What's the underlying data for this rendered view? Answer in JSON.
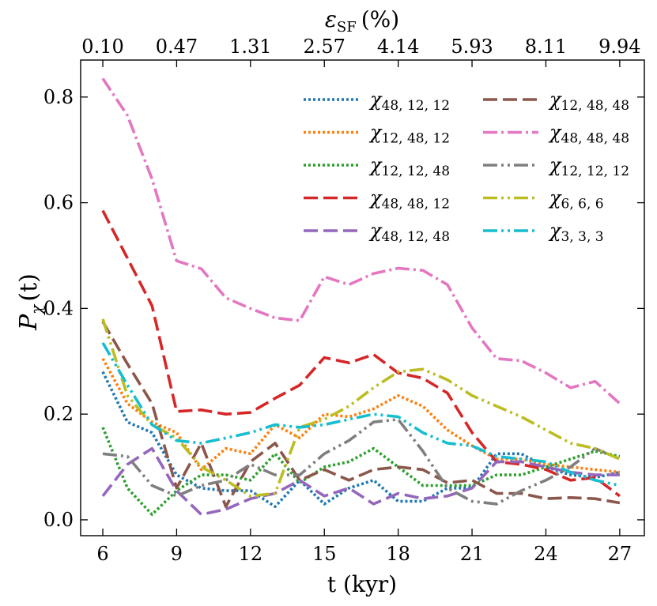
{
  "chart_data": {
    "type": "line",
    "xlabel": "t (kyr)",
    "ylabel_main": "P",
    "ylabel_sub": "χ",
    "ylabel_arg": "(t)",
    "top_axis_label_main": "ε",
    "top_axis_label_sub": "SF",
    "top_axis_label_unit": "(%)",
    "xlim": [
      5.1,
      28.0
    ],
    "ylim": [
      -0.03,
      0.87
    ],
    "x_ticks": [
      6,
      9,
      12,
      15,
      18,
      21,
      24,
      27
    ],
    "x_tick_labels": [
      "6",
      "9",
      "12",
      "15",
      "18",
      "21",
      "24",
      "27"
    ],
    "y_ticks": [
      0.0,
      0.2,
      0.4,
      0.6,
      0.8
    ],
    "y_tick_labels": [
      "0.0",
      "0.2",
      "0.4",
      "0.6",
      "0.8"
    ],
    "top_ticks": [
      6,
      9,
      12,
      15,
      18,
      21,
      24,
      27
    ],
    "top_tick_labels": [
      "0.10",
      "0.47",
      "1.31",
      "2.57",
      "4.14",
      "5.93",
      "8.11",
      "9.94"
    ],
    "x": [
      6,
      7,
      8,
      9,
      10,
      11,
      12,
      13,
      14,
      15,
      16,
      17,
      18,
      19,
      20,
      21,
      22,
      23,
      24,
      25,
      26,
      27
    ],
    "series": [
      {
        "name": "χ48,12,12",
        "sub": "48, 12, 12",
        "color": "#1f77b4",
        "dash": "3,3",
        "values": [
          0.28,
          0.185,
          0.165,
          0.085,
          0.06,
          0.055,
          0.055,
          0.025,
          0.075,
          0.03,
          0.06,
          0.075,
          0.035,
          0.035,
          0.06,
          0.06,
          0.125,
          0.125,
          0.1,
          0.085,
          0.08,
          0.09
        ]
      },
      {
        "name": "χ12,48,12",
        "sub": "12, 48, 12",
        "color": "#ff7f0e",
        "dash": "3,3",
        "values": [
          0.305,
          0.22,
          0.185,
          0.165,
          0.095,
          0.135,
          0.125,
          0.18,
          0.155,
          0.2,
          0.195,
          0.21,
          0.235,
          0.215,
          0.17,
          0.14,
          0.115,
          0.115,
          0.105,
          0.1,
          0.095,
          0.09
        ]
      },
      {
        "name": "χ12,12,48",
        "sub": "12, 12, 48",
        "color": "#2ca02c",
        "dash": "3,3",
        "values": [
          0.175,
          0.06,
          0.01,
          0.055,
          0.085,
          0.085,
          0.075,
          0.125,
          0.07,
          0.1,
          0.11,
          0.135,
          0.1,
          0.065,
          0.065,
          0.065,
          0.085,
          0.085,
          0.1,
          0.115,
          0.13,
          0.12
        ]
      },
      {
        "name": "χ48,48,12",
        "sub": "48, 48, 12",
        "color": "#d62728",
        "dash": "18,7",
        "values": [
          0.585,
          0.495,
          0.405,
          0.205,
          0.208,
          0.2,
          0.203,
          0.23,
          0.255,
          0.307,
          0.297,
          0.313,
          0.278,
          0.268,
          0.24,
          0.165,
          0.11,
          0.105,
          0.095,
          0.075,
          0.08,
          0.045
        ]
      },
      {
        "name": "χ48,12,48",
        "sub": "48, 12, 48",
        "color": "#9467bd",
        "dash": "18,7",
        "values": [
          0.045,
          0.105,
          0.135,
          0.055,
          0.01,
          0.02,
          0.04,
          0.05,
          0.075,
          0.045,
          0.06,
          0.03,
          0.05,
          0.04,
          0.045,
          0.06,
          0.11,
          0.11,
          0.1,
          0.09,
          0.085,
          0.085
        ]
      },
      {
        "name": "χ12,48,48",
        "sub": "12, 48, 48",
        "color": "#8c564b",
        "dash": "18,7",
        "values": [
          0.375,
          0.295,
          0.22,
          0.06,
          0.145,
          0.025,
          0.11,
          0.145,
          0.075,
          0.095,
          0.075,
          0.095,
          0.1,
          0.095,
          0.07,
          0.075,
          0.05,
          0.05,
          0.04,
          0.042,
          0.04,
          0.032
        ]
      },
      {
        "name": "χ48,48,48",
        "sub": "48, 48, 48",
        "color": "#e377c2",
        "dash": "18,5,3,5",
        "values": [
          0.835,
          0.765,
          0.645,
          0.49,
          0.475,
          0.42,
          0.4,
          0.382,
          0.377,
          0.46,
          0.445,
          0.466,
          0.476,
          0.472,
          0.445,
          0.363,
          0.305,
          0.301,
          0.278,
          0.25,
          0.262,
          0.22
        ]
      },
      {
        "name": "χ12,12,12",
        "sub": "12, 12, 12",
        "color": "#7f7f7f",
        "dash": "18,5,3,5,3,5",
        "values": [
          0.125,
          0.12,
          0.065,
          0.045,
          0.065,
          0.075,
          0.105,
          0.085,
          0.085,
          0.125,
          0.15,
          0.185,
          0.19,
          0.13,
          0.06,
          0.035,
          0.03,
          0.055,
          0.075,
          0.1,
          0.135,
          0.115
        ]
      },
      {
        "name": "χ6,6,6",
        "sub": "6, 6, 6",
        "color": "#bcbd22",
        "dash": "18,5,3,5,3,5",
        "values": [
          0.38,
          0.235,
          0.18,
          0.155,
          0.1,
          0.075,
          0.045,
          0.05,
          0.175,
          0.19,
          0.215,
          0.25,
          0.28,
          0.285,
          0.265,
          0.235,
          0.215,
          0.195,
          0.17,
          0.145,
          0.135,
          0.115
        ]
      },
      {
        "name": "χ3,3,3",
        "sub": "3, 3, 3",
        "color": "#17becf",
        "dash": "18,5,3,5,3,5",
        "values": [
          0.335,
          0.255,
          0.18,
          0.15,
          0.145,
          0.155,
          0.165,
          0.18,
          0.175,
          0.18,
          0.19,
          0.2,
          0.195,
          0.165,
          0.145,
          0.14,
          0.12,
          0.115,
          0.11,
          0.09,
          0.075,
          0.065
        ]
      }
    ]
  }
}
